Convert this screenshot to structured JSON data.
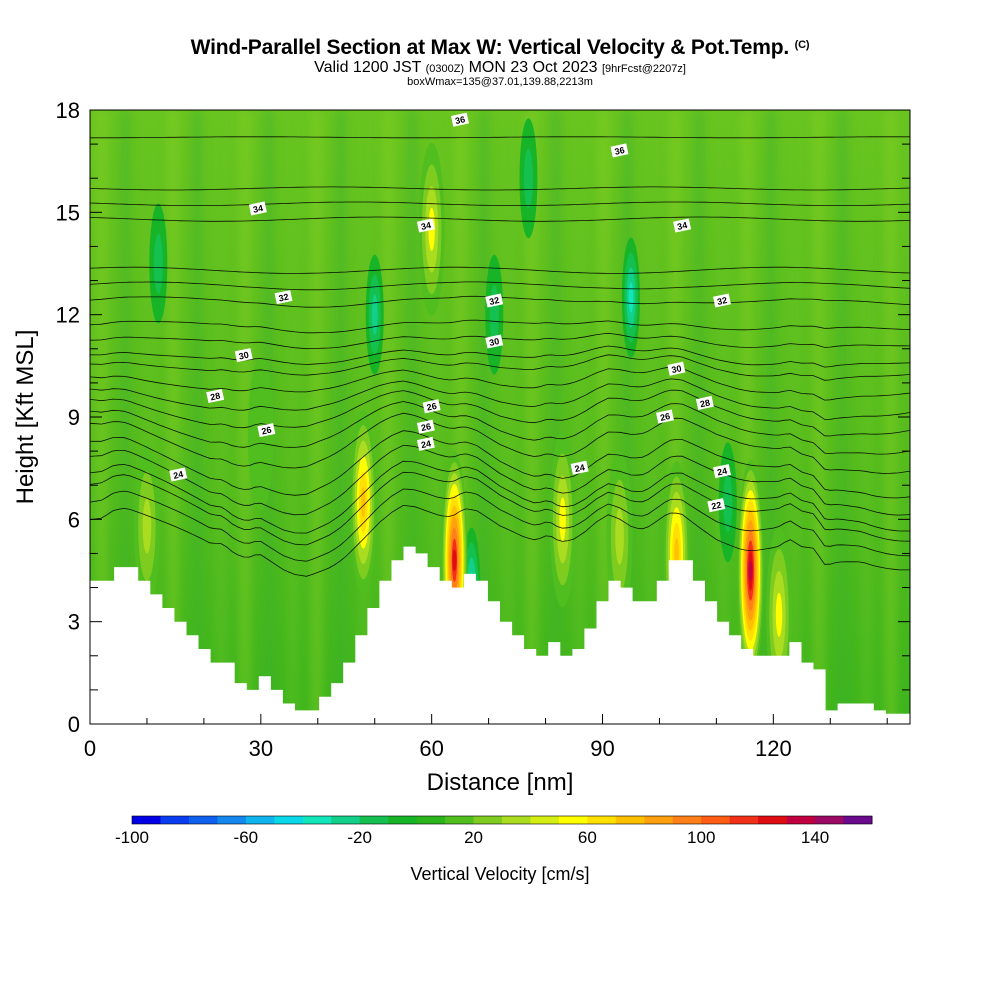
{
  "header": {
    "title": "Wind-Parallel Section at Max W: Vertical Velocity & Pot.Temp.",
    "copyright": "(C)",
    "valid_main": "Valid 1200 JST",
    "valid_utc": "(0300Z)",
    "valid_date": "MON 23 Oct 2023",
    "forecast": "[9hrFcst@2207z]",
    "subtitle": "boxWmax=135@37.01,139.88,2213m"
  },
  "chart_data": {
    "type": "heatmap",
    "title": "Wind-Parallel Section at Max W: Vertical Velocity & Pot.Temp.",
    "xlabel": "Distance [nm]",
    "ylabel": "Height [Kft MSL]",
    "xlim": [
      0,
      144
    ],
    "ylim": [
      0,
      18
    ],
    "x_ticks": [
      0,
      30,
      60,
      90,
      120
    ],
    "y_ticks": [
      0,
      3,
      6,
      9,
      12,
      15,
      18
    ],
    "colorbar": {
      "label": "Vertical Velocity [cm/s]",
      "ticks": [
        -100,
        -60,
        -20,
        20,
        60,
        100,
        140
      ],
      "range": [
        -100,
        160
      ],
      "step": 10,
      "colors": [
        "#0000e6",
        "#0a3cf0",
        "#1060f0",
        "#1488ee",
        "#10b4ee",
        "#08d8e8",
        "#14e6bc",
        "#12d08a",
        "#14c050",
        "#18b428",
        "#2cb41c",
        "#50be1e",
        "#7ecc20",
        "#aadc20",
        "#d4ee14",
        "#ffff00",
        "#ffe000",
        "#ffc000",
        "#ffa010",
        "#ff8018",
        "#ff5c14",
        "#f03018",
        "#e00c14",
        "#c00040",
        "#9c0a64",
        "#6a0a8c"
      ]
    },
    "terrain_top_kft": [
      4.2,
      4.2,
      4.6,
      4.6,
      4.2,
      3.8,
      3.4,
      3.0,
      2.6,
      2.2,
      1.8,
      1.8,
      1.2,
      1.0,
      1.4,
      1.0,
      0.6,
      0.4,
      0.4,
      0.8,
      1.2,
      1.8,
      2.6,
      3.4,
      4.2,
      4.8,
      5.2,
      5.0,
      4.6,
      4.2,
      4.0,
      4.4,
      4.2,
      3.6,
      3.0,
      2.6,
      2.2,
      2.0,
      2.4,
      2.0,
      2.2,
      2.8,
      3.6,
      4.2,
      4.0,
      3.6,
      3.6,
      4.2,
      4.8,
      4.8,
      4.2,
      3.6,
      3.0,
      2.6,
      2.2,
      2.0,
      2.0,
      2.0,
      2.4,
      1.8,
      1.6,
      0.4,
      0.6,
      0.6,
      0.6,
      0.4,
      0.3,
      0.3,
      0.4
    ],
    "updrafts": [
      {
        "x_nm": 10,
        "z_kft": 5.8,
        "peak_cms": 40
      },
      {
        "x_nm": 30,
        "z_kft": 8.5,
        "peak_cms": 20
      },
      {
        "x_nm": 48,
        "z_kft": 6.5,
        "peak_cms": 75
      },
      {
        "x_nm": 60,
        "z_kft": 14.5,
        "peak_cms": 55
      },
      {
        "x_nm": 64,
        "z_kft": 4.8,
        "peak_cms": 130
      },
      {
        "x_nm": 83,
        "z_kft": 6.0,
        "peak_cms": 60
      },
      {
        "x_nm": 93,
        "z_kft": 5.5,
        "peak_cms": 50
      },
      {
        "x_nm": 103,
        "z_kft": 5.0,
        "peak_cms": 75
      },
      {
        "x_nm": 116,
        "z_kft": 4.5,
        "peak_cms": 135
      },
      {
        "x_nm": 121,
        "z_kft": 3.2,
        "peak_cms": 60
      }
    ],
    "downdrafts": [
      {
        "x_nm": 12,
        "z_kft": 13.5,
        "peak_cms": -20
      },
      {
        "x_nm": 50,
        "z_kft": 12.0,
        "peak_cms": -25
      },
      {
        "x_nm": 67,
        "z_kft": 4.0,
        "peak_cms": -35
      },
      {
        "x_nm": 71,
        "z_kft": 12.0,
        "peak_cms": -20
      },
      {
        "x_nm": 77,
        "z_kft": 16.0,
        "peak_cms": -20
      },
      {
        "x_nm": 95,
        "z_kft": 12.5,
        "peak_cms": -35
      },
      {
        "x_nm": 112,
        "z_kft": 6.5,
        "peak_cms": -20
      }
    ],
    "theta_contours_c": [
      22,
      24,
      26,
      28,
      30,
      32,
      34,
      36
    ],
    "theta_labels": [
      {
        "value": "24",
        "x_nm": 15.5,
        "z_kft": 7.3
      },
      {
        "value": "24",
        "x_nm": 59,
        "z_kft": 8.2
      },
      {
        "value": "24",
        "x_nm": 86,
        "z_kft": 7.5
      },
      {
        "value": "24",
        "x_nm": 111,
        "z_kft": 7.4
      },
      {
        "value": "22",
        "x_nm": 110,
        "z_kft": 6.4
      },
      {
        "value": "26",
        "x_nm": 31,
        "z_kft": 8.6
      },
      {
        "value": "26",
        "x_nm": 59,
        "z_kft": 8.7
      },
      {
        "value": "26",
        "x_nm": 60,
        "z_kft": 9.3
      },
      {
        "value": "26",
        "x_nm": 101,
        "z_kft": 9.0
      },
      {
        "value": "28",
        "x_nm": 22,
        "z_kft": 9.6
      },
      {
        "value": "28",
        "x_nm": 108,
        "z_kft": 9.4
      },
      {
        "value": "30",
        "x_nm": 27,
        "z_kft": 10.8
      },
      {
        "value": "30",
        "x_nm": 71,
        "z_kft": 11.2
      },
      {
        "value": "30",
        "x_nm": 103,
        "z_kft": 10.4
      },
      {
        "value": "32",
        "x_nm": 34,
        "z_kft": 12.5
      },
      {
        "value": "32",
        "x_nm": 71,
        "z_kft": 12.4
      },
      {
        "value": "32",
        "x_nm": 111,
        "z_kft": 12.4
      },
      {
        "value": "34",
        "x_nm": 29.5,
        "z_kft": 15.1
      },
      {
        "value": "34",
        "x_nm": 59,
        "z_kft": 14.6
      },
      {
        "value": "34",
        "x_nm": 104,
        "z_kft": 14.6
      },
      {
        "value": "36",
        "x_nm": 65,
        "z_kft": 17.7
      },
      {
        "value": "36",
        "x_nm": 93,
        "z_kft": 16.8
      }
    ]
  }
}
